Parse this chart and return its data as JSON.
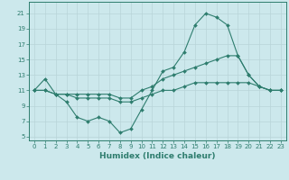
{
  "line1_x": [
    0,
    1,
    2,
    3,
    4,
    5,
    6,
    7,
    8,
    9,
    10,
    11,
    12,
    13,
    14,
    15,
    16,
    17,
    18,
    19,
    20,
    21,
    22,
    23
  ],
  "line1_y": [
    11,
    12.5,
    10.5,
    9.5,
    7.5,
    7.0,
    7.5,
    7.0,
    5.5,
    6.0,
    8.5,
    11.0,
    13.5,
    14.0,
    16.0,
    19.5,
    21.0,
    20.5,
    19.5,
    15.5,
    13.0,
    11.5,
    11.0,
    11.0
  ],
  "line2_x": [
    0,
    1,
    2,
    3,
    4,
    5,
    6,
    7,
    8,
    9,
    10,
    11,
    12,
    13,
    14,
    15,
    16,
    17,
    18,
    19,
    20,
    21,
    22,
    23
  ],
  "line2_y": [
    11.0,
    11.0,
    10.5,
    10.5,
    10.5,
    10.5,
    10.5,
    10.5,
    10.0,
    10.0,
    11.0,
    11.5,
    12.5,
    13.0,
    13.5,
    14.0,
    14.5,
    15.0,
    15.5,
    15.5,
    13.0,
    11.5,
    11.0,
    11.0
  ],
  "line3_x": [
    0,
    1,
    2,
    3,
    4,
    5,
    6,
    7,
    8,
    9,
    10,
    11,
    12,
    13,
    14,
    15,
    16,
    17,
    18,
    19,
    20,
    21,
    22,
    23
  ],
  "line3_y": [
    11.0,
    11.0,
    10.5,
    10.5,
    10.0,
    10.0,
    10.0,
    10.0,
    9.5,
    9.5,
    10.0,
    10.5,
    11.0,
    11.0,
    11.5,
    12.0,
    12.0,
    12.0,
    12.0,
    12.0,
    12.0,
    11.5,
    11.0,
    11.0
  ],
  "line_color": "#2e7d6e",
  "bg_color": "#cce8ec",
  "grid_color": "#b8d4d8",
  "xlabel": "Humidex (Indice chaleur)",
  "xlim": [
    -0.5,
    23.5
  ],
  "ylim": [
    4.5,
    22.5
  ],
  "xticks": [
    0,
    1,
    2,
    3,
    4,
    5,
    6,
    7,
    8,
    9,
    10,
    11,
    12,
    13,
    14,
    15,
    16,
    17,
    18,
    19,
    20,
    21,
    22,
    23
  ],
  "yticks": [
    5,
    7,
    9,
    11,
    13,
    15,
    17,
    19,
    21
  ],
  "tick_fontsize": 5.0,
  "xlabel_fontsize": 6.5,
  "markersize": 2.0,
  "linewidth": 0.8
}
